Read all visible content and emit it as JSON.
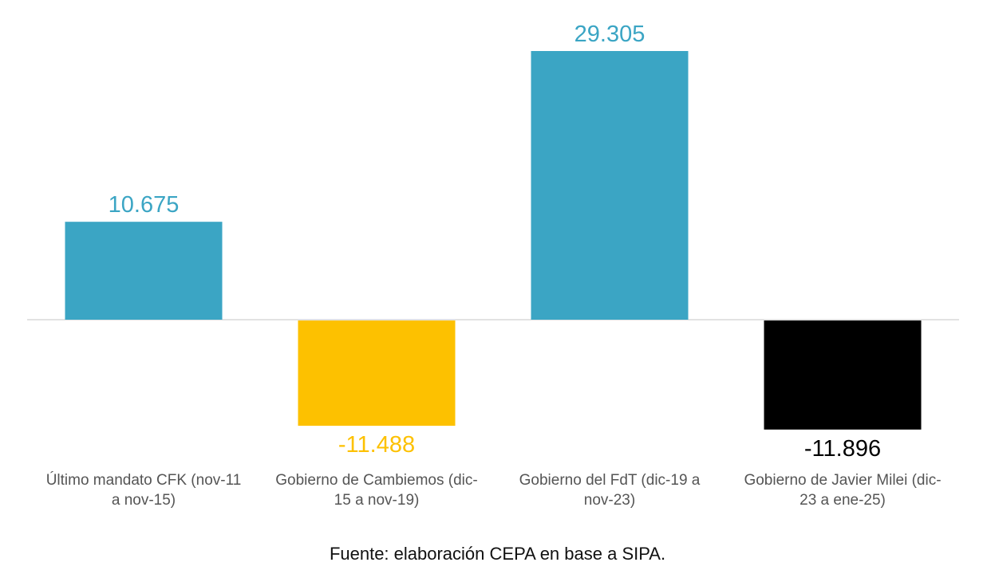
{
  "chart_data": {
    "type": "bar",
    "title": "",
    "xlabel": "",
    "ylabel": "",
    "ylim": [
      -11.896,
      29.305
    ],
    "grid": false,
    "categories": [
      "Último mandato CFK (nov-11 a nov-15)",
      "Gobierno de Cambiemos (dic-15 a nov-19)",
      "Gobierno del FdT (dic-19 a nov-23)",
      "Gobierno de Javier Milei (dic-23 a ene-25)"
    ],
    "values": [
      10.675,
      -11.488,
      29.305,
      -11.896
    ],
    "value_labels": [
      "10.675",
      "-11.488",
      "29.305",
      "-11.896"
    ],
    "colors": [
      "#3ba5c4",
      "#fdc100",
      "#3ba5c4",
      "#000000"
    ],
    "label_colors": [
      "#3ba5c4",
      "#fdc100",
      "#3ba5c4",
      "#000000"
    ]
  },
  "category_lines": [
    [
      "Último mandato CFK (nov-11",
      "a nov-15)"
    ],
    [
      "Gobierno de Cambiemos (dic-",
      "15 a nov-19)"
    ],
    [
      "Gobierno del FdT (dic-19 a",
      "nov-23)"
    ],
    [
      "Gobierno de Javier Milei (dic-",
      "23 a ene-25)"
    ]
  ],
  "source": "Fuente: elaboración CEPA en base a SIPA."
}
